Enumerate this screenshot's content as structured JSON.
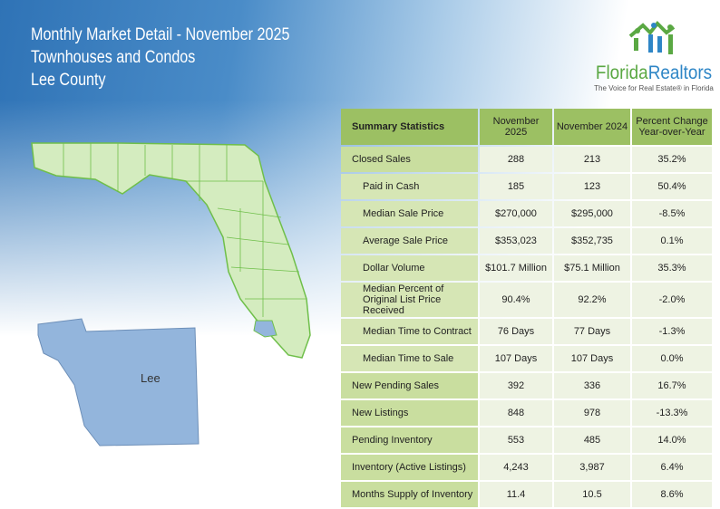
{
  "header": {
    "line1": "Monthly Market Detail - November 2025",
    "line2": "Townhouses and Condos",
    "line3": "Lee County"
  },
  "logo": {
    "name_part1": "Florida",
    "name_part2": "Realtors",
    "tagline": "The Voice for Real Estate® in Florida"
  },
  "map": {
    "county_label": "Lee",
    "colors": {
      "state": "#d4ecbf",
      "county": "#93b5dc",
      "outline": "#6fbf4a"
    }
  },
  "table": {
    "headers": [
      "Summary Statistics",
      "November 2025",
      "November 2024",
      "Percent Change Year-over-Year"
    ],
    "rows": [
      {
        "label": "Closed Sales",
        "a": "288",
        "b": "213",
        "c": "35.2%",
        "indent": false
      },
      {
        "label": "Paid in Cash",
        "a": "185",
        "b": "123",
        "c": "50.4%",
        "indent": true
      },
      {
        "label": "Median Sale Price",
        "a": "$270,000",
        "b": "$295,000",
        "c": "-8.5%",
        "indent": true
      },
      {
        "label": "Average Sale Price",
        "a": "$353,023",
        "b": "$352,735",
        "c": "0.1%",
        "indent": true
      },
      {
        "label": "Dollar Volume",
        "a": "$101.7 Million",
        "b": "$75.1 Million",
        "c": "35.3%",
        "indent": true
      },
      {
        "label": "Median Percent of Original List Price Received",
        "a": "90.4%",
        "b": "92.2%",
        "c": "-2.0%",
        "indent": true
      },
      {
        "label": "Median Time to Contract",
        "a": "76 Days",
        "b": "77 Days",
        "c": "-1.3%",
        "indent": true
      },
      {
        "label": "Median Time to Sale",
        "a": "107 Days",
        "b": "107 Days",
        "c": "0.0%",
        "indent": true
      },
      {
        "label": "New Pending Sales",
        "a": "392",
        "b": "336",
        "c": "16.7%",
        "indent": false
      },
      {
        "label": "New Listings",
        "a": "848",
        "b": "978",
        "c": "-13.3%",
        "indent": false
      },
      {
        "label": "Pending Inventory",
        "a": "553",
        "b": "485",
        "c": "14.0%",
        "indent": false
      },
      {
        "label": "Inventory (Active Listings)",
        "a": "4,243",
        "b": "3,987",
        "c": "6.4%",
        "indent": false
      },
      {
        "label": "Months Supply of Inventory",
        "a": "11.4",
        "b": "10.5",
        "c": "8.6%",
        "indent": false
      }
    ]
  }
}
